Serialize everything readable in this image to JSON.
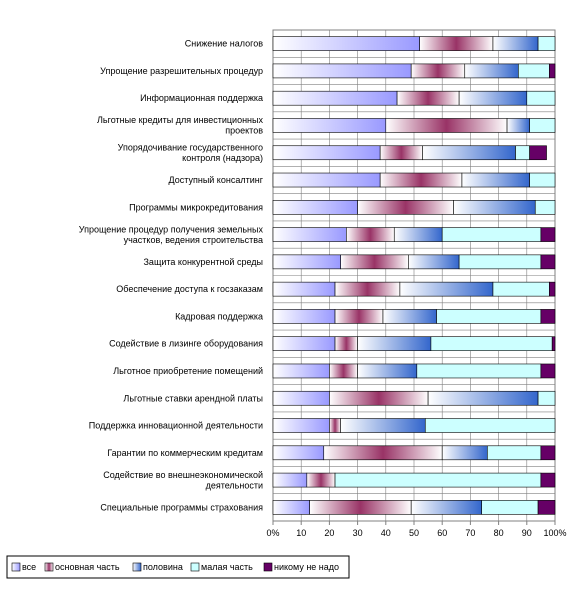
{
  "chart_data": {
    "type": "bar",
    "orientation": "horizontal",
    "stacked": "percent",
    "xlim": [
      0,
      100
    ],
    "x_ticks": [
      "0%",
      "10",
      "20",
      "30",
      "40",
      "50",
      "60",
      "70",
      "80",
      "90",
      "100%"
    ],
    "grid": true,
    "legend_position": "bottom-left",
    "categories": [
      "Снижение налогов",
      "Упрощение разрешительных процедур",
      "Информационная поддержка",
      "Льготные кредиты для инвестиционных проектов",
      "Упорядочивание государственного контроля (надзора)",
      "Доступный консалтинг",
      "Программы микрокредитования",
      "Упрощение процедур получения земельных участков, ведения строительства",
      "Защита конкурентной среды",
      "Обеспечение доступа к госзаказам",
      "Кадровая поддержка",
      "Содействие в лизинге оборудования",
      "Льготное приобретение помещений",
      "Льготные ставки арендной платы",
      "Поддержка инновационной деятельности",
      "Гарантии по коммерческим кредитам",
      "Содействие во внешнеэкономической деятельности",
      "Специальные программы страхования"
    ],
    "series": [
      {
        "name": "все",
        "color": "#9999ff",
        "values": [
          52,
          49,
          44,
          40,
          38,
          38,
          30,
          26,
          24,
          22,
          22,
          22,
          20,
          20,
          20,
          18,
          12,
          13
        ]
      },
      {
        "name": "основная часть",
        "color": "#993366",
        "values": [
          26,
          19,
          22,
          43,
          15,
          29,
          34,
          17,
          24,
          23,
          17,
          8,
          10,
          35,
          4,
          42,
          10,
          36
        ]
      },
      {
        "name": "половина",
        "color": "#d6e6ff",
        "values": [
          16,
          19,
          24,
          8,
          33,
          24,
          29,
          17,
          18,
          33,
          19,
          26,
          21,
          39,
          30,
          16,
          0,
          25
        ]
      },
      {
        "name": "малая часть",
        "color": "#ccffff",
        "values": [
          6,
          11,
          10,
          9,
          5,
          9,
          7,
          35,
          29,
          20,
          37,
          43,
          44,
          6,
          46,
          19,
          73,
          20
        ]
      },
      {
        "name": "никому не надо",
        "color": "#660066",
        "values": [
          0,
          2,
          0,
          0,
          6,
          0,
          0,
          5,
          5,
          2,
          5,
          1,
          5,
          0,
          0,
          5,
          5,
          6
        ]
      }
    ]
  }
}
